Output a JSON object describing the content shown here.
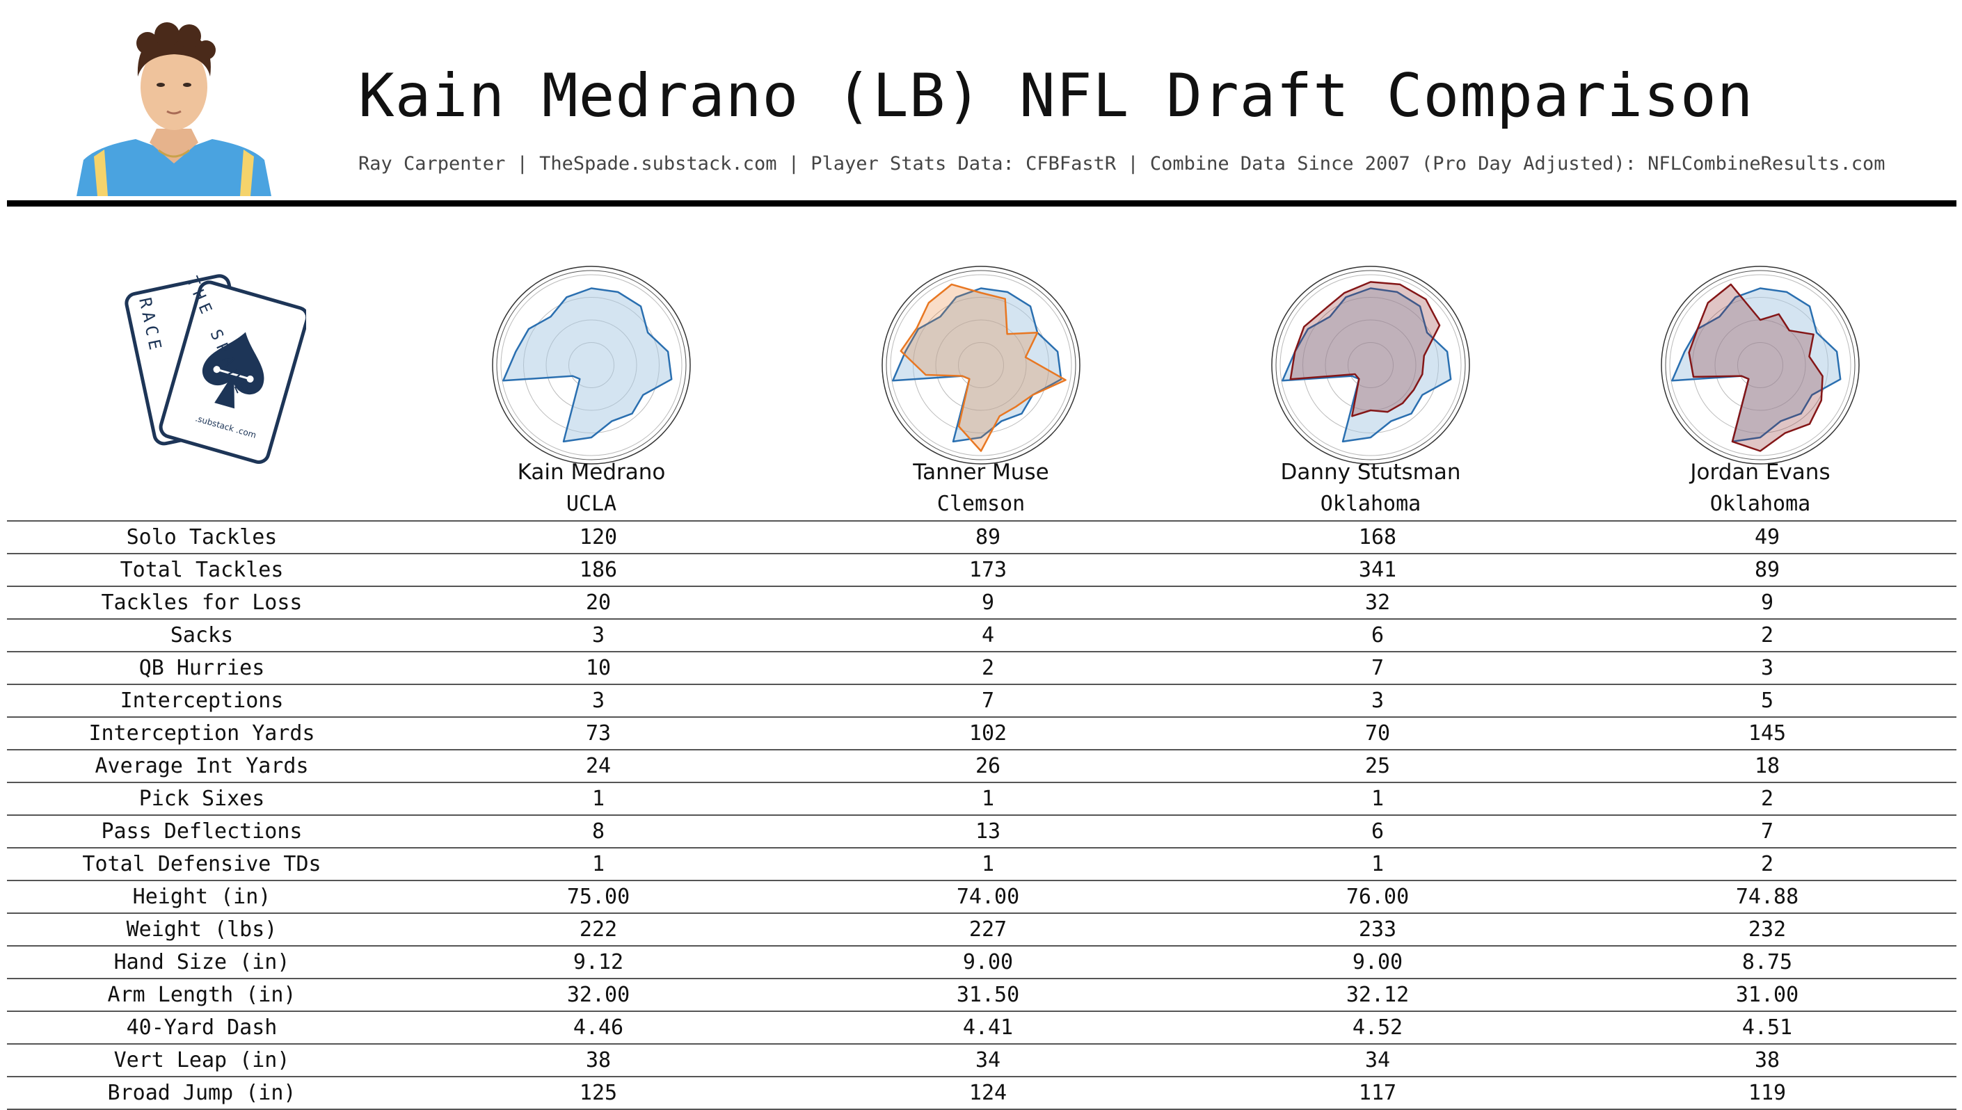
{
  "header": {
    "title": "Kain Medrano (LB) NFL Draft Comparison",
    "subtitle": "Ray Carpenter | TheSpade.substack.com | Player Stats Data: CFBFastR | Combine Data Since 2007 (Pro Day Adjusted): NFLCombineResults.com"
  },
  "logo": {
    "card_back_text": "RACE",
    "card_front_text": "THE SPADE",
    "card_front_sub": ".substack .com",
    "icon": "spade-playing-cards-icon"
  },
  "colors": {
    "base": "#2a6fb0",
    "base_fill": "#a9c9e4",
    "tanner_muse": "#e87722",
    "danny_stutsman": "#841617",
    "jordan_evans": "#841617",
    "photo_jersey": "#4aa3e0"
  },
  "players": [
    {
      "name": "Kain Medrano",
      "school": "UCLA"
    },
    {
      "name": "Tanner Muse",
      "school": "Clemson"
    },
    {
      "name": "Danny Stutsman",
      "school": "Oklahoma"
    },
    {
      "name": "Jordan Evans",
      "school": "Oklahoma"
    }
  ],
  "table": {
    "rows": [
      {
        "label": "Solo Tackles",
        "values": [
          "120",
          "89",
          "168",
          "49"
        ]
      },
      {
        "label": "Total Tackles",
        "values": [
          "186",
          "173",
          "341",
          "89"
        ]
      },
      {
        "label": "Tackles for Loss",
        "values": [
          "20",
          "9",
          "32",
          "9"
        ]
      },
      {
        "label": "Sacks",
        "values": [
          "3",
          "4",
          "6",
          "2"
        ]
      },
      {
        "label": "QB Hurries",
        "values": [
          "10",
          "2",
          "7",
          "3"
        ]
      },
      {
        "label": "Interceptions",
        "values": [
          "3",
          "7",
          "3",
          "5"
        ]
      },
      {
        "label": "Interception Yards",
        "values": [
          "73",
          "102",
          "70",
          "145"
        ]
      },
      {
        "label": "Average Int Yards",
        "values": [
          "24",
          "26",
          "25",
          "18"
        ]
      },
      {
        "label": "Pick Sixes",
        "values": [
          "1",
          "1",
          "1",
          "2"
        ]
      },
      {
        "label": "Pass Deflections",
        "values": [
          "8",
          "13",
          "6",
          "7"
        ]
      },
      {
        "label": "Total Defensive TDs",
        "values": [
          "1",
          "1",
          "1",
          "2"
        ]
      },
      {
        "label": "Height (in)",
        "values": [
          "75.00",
          "74.00",
          "76.00",
          "74.88"
        ]
      },
      {
        "label": "Weight (lbs)",
        "values": [
          "222",
          "227",
          "233",
          "232"
        ]
      },
      {
        "label": "Hand Size (in)",
        "values": [
          "9.12",
          "9.00",
          "9.00",
          "8.75"
        ]
      },
      {
        "label": "Arm Length (in)",
        "values": [
          "32.00",
          "31.50",
          "32.12",
          "31.00"
        ]
      },
      {
        "label": "40-Yard Dash",
        "values": [
          "4.46",
          "4.41",
          "4.52",
          "4.51"
        ]
      },
      {
        "label": "Vert Leap (in)",
        "values": [
          "38",
          "34",
          "34",
          "38"
        ]
      },
      {
        "label": "Broad Jump (in)",
        "values": [
          "125",
          "124",
          "117",
          "119"
        ]
      }
    ]
  },
  "chart_data": [
    {
      "type": "radar",
      "player": "Kain Medrano",
      "rmax": 1.0,
      "rings": 4,
      "grid": true,
      "series": [
        {
          "values": [
            0.85,
            0.86,
            0.85,
            0.72,
            0.86,
            0.9,
            0.66,
            0.7,
            0.66,
            0.8,
            0.9,
            0.2,
            0.24,
            0.99,
            0.85,
            0.8,
            0.7,
            0.8
          ]
        }
      ]
    },
    {
      "type": "radar",
      "player": "Tanner Muse",
      "rmax": 1.0,
      "rings": 4,
      "grid": true,
      "series": [
        {
          "values": [
            0.85,
            0.86,
            0.85,
            0.72,
            0.86,
            0.9,
            0.66,
            0.7,
            0.66,
            0.8,
            0.9,
            0.2,
            0.24,
            0.99,
            0.85,
            0.8,
            0.7,
            0.8
          ]
        },
        {
          "values": [
            0.8,
            0.78,
            0.45,
            0.72,
            0.5,
            0.95,
            0.66,
            0.6,
            0.6,
            0.95,
            0.72,
            0.2,
            0.24,
            0.62,
            0.9,
            0.82,
            0.9,
            0.95
          ]
        }
      ]
    },
    {
      "type": "radar",
      "player": "Danny Stutsman",
      "rmax": 1.0,
      "rings": 4,
      "grid": true,
      "series": [
        {
          "values": [
            0.85,
            0.86,
            0.85,
            0.72,
            0.86,
            0.9,
            0.66,
            0.7,
            0.66,
            0.8,
            0.9,
            0.2,
            0.24,
            0.99,
            0.85,
            0.8,
            0.7,
            0.8
          ]
        },
        {
          "values": [
            0.92,
            0.95,
            0.95,
            0.88,
            0.6,
            0.58,
            0.55,
            0.55,
            0.55,
            0.5,
            0.6,
            0.2,
            0.2,
            0.9,
            0.85,
            0.85,
            0.8,
            0.85
          ]
        }
      ]
    },
    {
      "type": "radar",
      "player": "Jordan Evans",
      "rmax": 1.0,
      "rings": 4,
      "grid": true,
      "series": [
        {
          "values": [
            0.85,
            0.86,
            0.85,
            0.72,
            0.86,
            0.9,
            0.66,
            0.7,
            0.66,
            0.8,
            0.9,
            0.2,
            0.24,
            0.99,
            0.85,
            0.8,
            0.7,
            0.8
          ]
        },
        {
          "values": [
            0.5,
            0.6,
            0.5,
            0.68,
            0.55,
            0.7,
            0.78,
            0.85,
            0.8,
            0.95,
            0.9,
            0.2,
            0.24,
            0.75,
            0.8,
            0.8,
            0.9,
            0.95
          ]
        }
      ]
    }
  ]
}
